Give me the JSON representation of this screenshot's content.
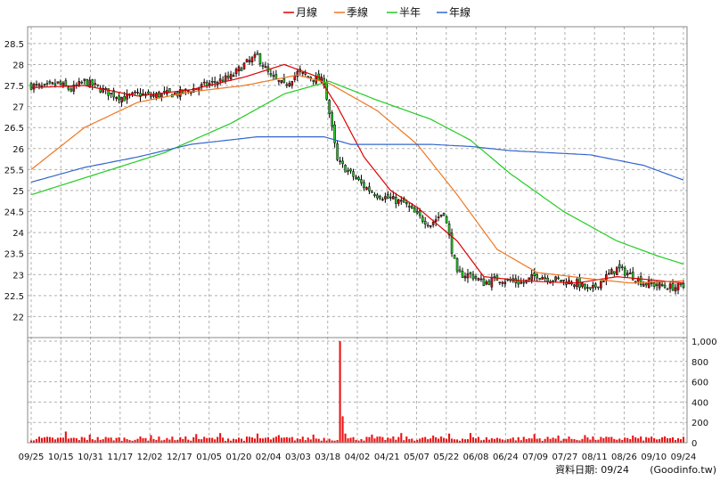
{
  "legend": [
    {
      "label": "月線",
      "color": "#dd0000"
    },
    {
      "label": "季線",
      "color": "#ee7722"
    },
    {
      "label": "半年",
      "color": "#22cc22"
    },
    {
      "label": "年線",
      "color": "#3366cc"
    }
  ],
  "footer": {
    "date_label": "資料日期: 09/24",
    "source": "(Goodinfo.tw)"
  },
  "chart_data": [
    {
      "type": "candlestick",
      "title": "",
      "ylim": [
        21.5,
        28.9
      ],
      "yticks": [
        22,
        22.5,
        23,
        23.5,
        24,
        24.5,
        25,
        25.5,
        26,
        26.5,
        27,
        27.5,
        28,
        28.5
      ],
      "ytick_labels": [
        "22",
        "22.5",
        "23",
        "23.5",
        "24",
        "24.5",
        "25",
        "25.5",
        "26",
        "26.5",
        "27",
        "27.5",
        "28",
        "28.5"
      ],
      "grid": true,
      "x_categories": [
        "09/25",
        "10/15",
        "10/31",
        "11/17",
        "12/02",
        "12/17",
        "01/05",
        "01/20",
        "02/04",
        "03/03",
        "03/18",
        "04/02",
        "04/21",
        "05/07",
        "05/22",
        "06/08",
        "06/24",
        "07/09",
        "07/27",
        "08/11",
        "08/26",
        "09/10",
        "09/24"
      ],
      "num_sessions": 246,
      "close_anchors": [
        [
          0,
          27.5
        ],
        [
          5,
          27.45
        ],
        [
          10,
          27.55
        ],
        [
          15,
          27.4
        ],
        [
          20,
          27.6
        ],
        [
          25,
          27.45
        ],
        [
          30,
          27.3
        ],
        [
          35,
          27.2
        ],
        [
          40,
          27.3
        ],
        [
          45,
          27.25
        ],
        [
          50,
          27.3
        ],
        [
          55,
          27.3
        ],
        [
          60,
          27.4
        ],
        [
          65,
          27.5
        ],
        [
          70,
          27.6
        ],
        [
          75,
          27.7
        ],
        [
          80,
          28.0
        ],
        [
          85,
          28.2
        ],
        [
          90,
          27.7
        ],
        [
          95,
          27.5
        ],
        [
          100,
          27.8
        ],
        [
          105,
          27.7
        ],
        [
          110,
          27.6
        ],
        [
          115,
          25.7
        ],
        [
          120,
          25.4
        ],
        [
          125,
          25.1
        ],
        [
          130,
          24.9
        ],
        [
          135,
          24.8
        ],
        [
          140,
          24.7
        ],
        [
          145,
          24.4
        ],
        [
          150,
          24.2
        ],
        [
          155,
          24.5
        ],
        [
          160,
          23.0
        ],
        [
          165,
          23.0
        ],
        [
          170,
          22.8
        ],
        [
          175,
          22.9
        ],
        [
          180,
          22.85
        ],
        [
          185,
          22.8
        ],
        [
          190,
          23.0
        ],
        [
          195,
          22.9
        ],
        [
          200,
          22.85
        ],
        [
          205,
          22.8
        ],
        [
          210,
          22.6
        ],
        [
          215,
          22.9
        ],
        [
          220,
          23.15
        ],
        [
          225,
          23.0
        ],
        [
          230,
          22.8
        ],
        [
          235,
          22.75
        ],
        [
          240,
          22.7
        ],
        [
          245,
          22.7
        ]
      ],
      "series": [
        {
          "name": "月線",
          "color": "#dd0000",
          "points": [
            [
              0,
              27.45
            ],
            [
              20,
              27.5
            ],
            [
              40,
              27.25
            ],
            [
              60,
              27.4
            ],
            [
              80,
              27.7
            ],
            [
              95,
              28.0
            ],
            [
              108,
              27.7
            ],
            [
              115,
              27.0
            ],
            [
              125,
              25.8
            ],
            [
              135,
              25.0
            ],
            [
              145,
              24.6
            ],
            [
              160,
              23.8
            ],
            [
              170,
              22.95
            ],
            [
              185,
              22.85
            ],
            [
              205,
              22.8
            ],
            [
              220,
              22.95
            ],
            [
              245,
              22.8
            ]
          ]
        },
        {
          "name": "季線",
          "color": "#ee7722",
          "points": [
            [
              0,
              25.5
            ],
            [
              20,
              26.5
            ],
            [
              40,
              27.1
            ],
            [
              60,
              27.35
            ],
            [
              80,
              27.5
            ],
            [
              100,
              27.75
            ],
            [
              112,
              27.55
            ],
            [
              130,
              26.9
            ],
            [
              145,
              26.1
            ],
            [
              160,
              24.9
            ],
            [
              175,
              23.6
            ],
            [
              190,
              23.05
            ],
            [
              210,
              22.9
            ],
            [
              225,
              22.8
            ],
            [
              245,
              22.85
            ]
          ]
        },
        {
          "name": "半年",
          "color": "#22cc22",
          "points": [
            [
              0,
              24.9
            ],
            [
              30,
              25.5
            ],
            [
              50,
              25.9
            ],
            [
              75,
              26.6
            ],
            [
              95,
              27.3
            ],
            [
              112,
              27.6
            ],
            [
              130,
              27.15
            ],
            [
              150,
              26.7
            ],
            [
              165,
              26.2
            ],
            [
              180,
              25.4
            ],
            [
              200,
              24.5
            ],
            [
              220,
              23.8
            ],
            [
              235,
              23.45
            ],
            [
              245,
              23.25
            ]
          ]
        },
        {
          "name": "年線",
          "color": "#3366cc",
          "points": [
            [
              0,
              25.2
            ],
            [
              20,
              25.55
            ],
            [
              40,
              25.8
            ],
            [
              60,
              26.1
            ],
            [
              85,
              26.28
            ],
            [
              110,
              26.28
            ],
            [
              120,
              26.1
            ],
            [
              150,
              26.1
            ],
            [
              165,
              26.05
            ],
            [
              180,
              25.95
            ],
            [
              210,
              25.85
            ],
            [
              230,
              25.6
            ],
            [
              245,
              25.25
            ]
          ]
        }
      ]
    },
    {
      "type": "bar",
      "title": "",
      "ylim": [
        0,
        1000
      ],
      "yticks": [
        0,
        200,
        400,
        600,
        800,
        1000
      ],
      "ytick_labels": [
        "0",
        "200",
        "400",
        "600",
        "800",
        "1,000"
      ],
      "color": "#ee1111",
      "baseline_range": [
        18,
        62
      ],
      "spikes": [
        [
          116,
          1000
        ],
        [
          117,
          260
        ],
        [
          118,
          90
        ],
        [
          13,
          110
        ],
        [
          22,
          80
        ],
        [
          45,
          75
        ],
        [
          62,
          85
        ],
        [
          71,
          95
        ],
        [
          85,
          90
        ],
        [
          93,
          75
        ],
        [
          106,
          80
        ],
        [
          128,
          80
        ],
        [
          139,
          95
        ],
        [
          151,
          70
        ],
        [
          157,
          90
        ],
        [
          165,
          95
        ],
        [
          189,
          85
        ],
        [
          198,
          70
        ],
        [
          208,
          75
        ],
        [
          226,
          70
        ],
        [
          233,
          60
        ]
      ]
    }
  ]
}
